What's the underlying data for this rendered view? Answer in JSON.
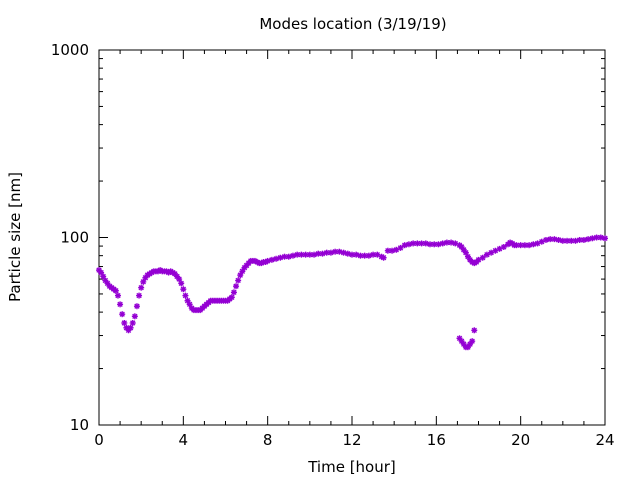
{
  "chart_data": {
    "type": "scatter",
    "title": "Modes location (3/19/19)",
    "xlabel": "Time [hour]",
    "ylabel": "Particle size [nm]",
    "xlim": [
      0,
      24
    ],
    "ylim": [
      10,
      1000
    ],
    "yscale": "log",
    "grid": false,
    "x_ticks": [
      0,
      4,
      8,
      12,
      16,
      20,
      24
    ],
    "x_tick_labels": [
      "0",
      "4",
      "8",
      "12",
      "16",
      "20",
      "24"
    ],
    "y_ticks": [
      10,
      100,
      1000
    ],
    "y_tick_labels": [
      "10",
      "100",
      "1000"
    ],
    "marker_color": "#9400d3",
    "series": [
      {
        "points": [
          [
            0.0,
            67
          ],
          [
            0.1,
            65
          ],
          [
            0.2,
            62
          ],
          [
            0.3,
            59
          ],
          [
            0.4,
            57
          ],
          [
            0.5,
            55
          ],
          [
            0.6,
            54
          ],
          [
            0.7,
            53
          ],
          [
            0.8,
            52
          ],
          [
            0.9,
            49
          ],
          [
            1.0,
            44
          ],
          [
            1.1,
            39
          ],
          [
            1.2,
            35
          ],
          [
            1.3,
            33
          ],
          [
            1.4,
            32
          ],
          [
            1.5,
            33
          ],
          [
            1.6,
            35
          ],
          [
            1.7,
            38
          ],
          [
            1.8,
            43
          ],
          [
            1.9,
            49
          ],
          [
            2.0,
            54
          ],
          [
            2.1,
            58
          ],
          [
            2.2,
            61
          ],
          [
            2.3,
            63
          ],
          [
            2.4,
            64
          ],
          [
            2.5,
            65
          ],
          [
            2.6,
            66
          ],
          [
            2.7,
            66
          ],
          [
            2.8,
            66
          ],
          [
            2.9,
            67
          ],
          [
            3.0,
            66
          ],
          [
            3.1,
            66
          ],
          [
            3.2,
            66
          ],
          [
            3.3,
            65
          ],
          [
            3.4,
            66
          ],
          [
            3.5,
            65
          ],
          [
            3.6,
            64
          ],
          [
            3.7,
            62
          ],
          [
            3.8,
            60
          ],
          [
            3.9,
            57
          ],
          [
            4.0,
            53
          ],
          [
            4.1,
            49
          ],
          [
            4.2,
            46
          ],
          [
            4.3,
            44
          ],
          [
            4.4,
            42
          ],
          [
            4.5,
            41
          ],
          [
            4.6,
            41
          ],
          [
            4.7,
            41
          ],
          [
            4.8,
            41
          ],
          [
            4.9,
            42
          ],
          [
            5.0,
            43
          ],
          [
            5.1,
            44
          ],
          [
            5.2,
            45
          ],
          [
            5.3,
            46
          ],
          [
            5.4,
            46
          ],
          [
            5.5,
            46
          ],
          [
            5.6,
            46
          ],
          [
            5.7,
            46
          ],
          [
            5.8,
            46
          ],
          [
            5.9,
            46
          ],
          [
            6.0,
            46
          ],
          [
            6.1,
            46
          ],
          [
            6.2,
            47
          ],
          [
            6.3,
            48
          ],
          [
            6.4,
            51
          ],
          [
            6.5,
            55
          ],
          [
            6.6,
            59
          ],
          [
            6.7,
            63
          ],
          [
            6.8,
            66
          ],
          [
            6.9,
            69
          ],
          [
            7.0,
            71
          ],
          [
            7.1,
            73
          ],
          [
            7.2,
            75
          ],
          [
            7.3,
            75
          ],
          [
            7.4,
            75
          ],
          [
            7.5,
            74
          ],
          [
            7.6,
            73
          ],
          [
            7.7,
            73
          ],
          [
            7.8,
            74
          ],
          [
            7.9,
            74
          ],
          [
            8.0,
            75
          ],
          [
            8.2,
            76
          ],
          [
            8.4,
            77
          ],
          [
            8.6,
            78
          ],
          [
            8.8,
            79
          ],
          [
            9.0,
            79
          ],
          [
            9.2,
            80
          ],
          [
            9.4,
            81
          ],
          [
            9.6,
            81
          ],
          [
            9.8,
            81
          ],
          [
            10.0,
            81
          ],
          [
            10.2,
            81
          ],
          [
            10.4,
            82
          ],
          [
            10.6,
            82
          ],
          [
            10.8,
            83
          ],
          [
            11.0,
            83
          ],
          [
            11.2,
            84
          ],
          [
            11.4,
            84
          ],
          [
            11.6,
            83
          ],
          [
            11.8,
            82
          ],
          [
            12.0,
            81
          ],
          [
            12.2,
            81
          ],
          [
            12.4,
            80
          ],
          [
            12.6,
            80
          ],
          [
            12.8,
            80
          ],
          [
            13.0,
            81
          ],
          [
            13.2,
            81
          ],
          [
            13.4,
            79
          ],
          [
            13.5,
            78
          ],
          [
            13.7,
            85
          ],
          [
            13.9,
            85
          ],
          [
            14.1,
            86
          ],
          [
            14.3,
            88
          ],
          [
            14.5,
            91
          ],
          [
            14.7,
            92
          ],
          [
            14.9,
            93
          ],
          [
            15.1,
            93
          ],
          [
            15.3,
            93
          ],
          [
            15.5,
            93
          ],
          [
            15.7,
            92
          ],
          [
            15.9,
            92
          ],
          [
            16.1,
            92
          ],
          [
            16.3,
            93
          ],
          [
            16.5,
            94
          ],
          [
            16.7,
            94
          ],
          [
            16.9,
            93
          ],
          [
            17.1,
            91
          ],
          [
            17.2,
            89
          ],
          [
            17.3,
            86
          ],
          [
            17.4,
            83
          ],
          [
            17.5,
            79
          ],
          [
            17.6,
            76
          ],
          [
            17.7,
            74
          ],
          [
            17.8,
            73
          ],
          [
            17.9,
            74
          ],
          [
            18.0,
            76
          ],
          [
            18.2,
            78
          ],
          [
            18.4,
            81
          ],
          [
            18.6,
            83
          ],
          [
            18.8,
            85
          ],
          [
            19.0,
            87
          ],
          [
            19.2,
            89
          ],
          [
            19.4,
            92
          ],
          [
            19.5,
            94
          ],
          [
            19.6,
            93
          ],
          [
            19.7,
            91
          ],
          [
            19.8,
            91
          ],
          [
            20.0,
            91
          ],
          [
            20.2,
            91
          ],
          [
            20.4,
            91
          ],
          [
            20.6,
            92
          ],
          [
            20.8,
            93
          ],
          [
            21.0,
            95
          ],
          [
            21.2,
            97
          ],
          [
            21.4,
            98
          ],
          [
            21.6,
            98
          ],
          [
            21.8,
            97
          ],
          [
            22.0,
            96
          ],
          [
            22.2,
            96
          ],
          [
            22.4,
            96
          ],
          [
            22.6,
            96
          ],
          [
            22.8,
            97
          ],
          [
            23.0,
            97
          ],
          [
            23.2,
            98
          ],
          [
            23.4,
            99
          ],
          [
            23.6,
            100
          ],
          [
            23.8,
            100
          ],
          [
            24.0,
            99
          ],
          [
            17.1,
            29
          ],
          [
            17.2,
            28
          ],
          [
            17.3,
            27
          ],
          [
            17.4,
            26
          ],
          [
            17.5,
            26
          ],
          [
            17.6,
            27
          ],
          [
            17.7,
            28
          ],
          [
            17.8,
            32
          ]
        ]
      }
    ]
  }
}
